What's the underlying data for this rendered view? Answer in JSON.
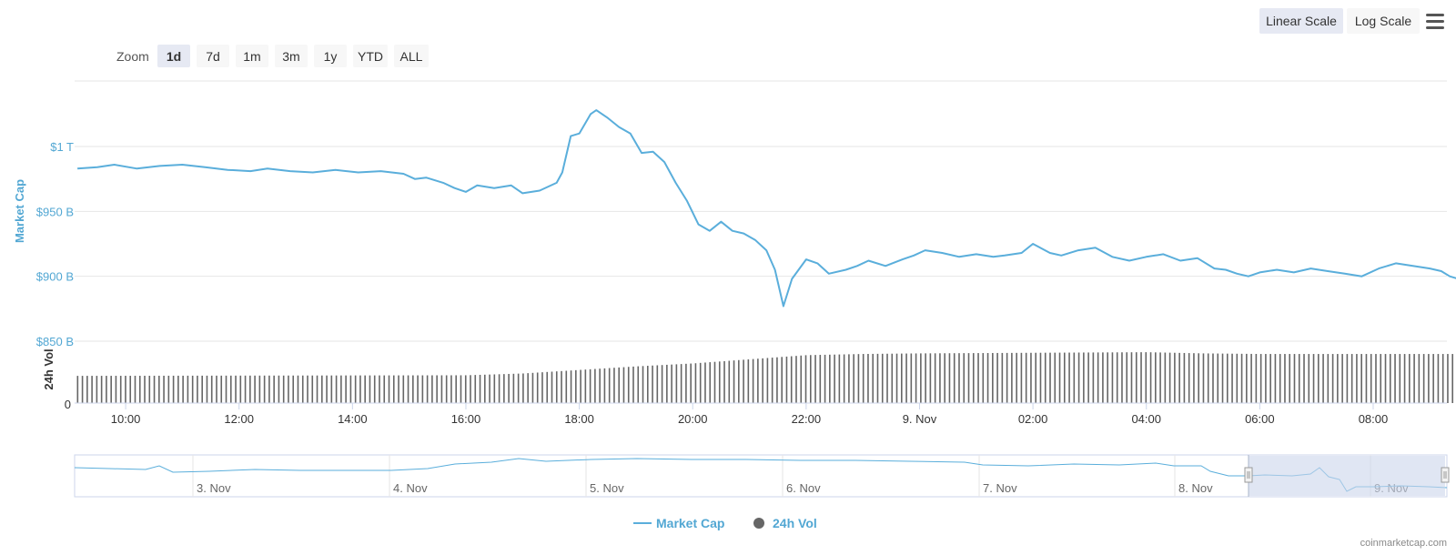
{
  "zoom": {
    "label": "Zoom",
    "buttons": [
      "1d",
      "7d",
      "1m",
      "3m",
      "1y",
      "YTD",
      "ALL"
    ],
    "active": "1d"
  },
  "scale": {
    "buttons": [
      "Linear Scale",
      "Log Scale"
    ],
    "active": "Linear Scale",
    "menu_icon": "hamburger-menu-icon"
  },
  "credit": "coinmarketcap.com",
  "colors": {
    "line": "#5aaedb",
    "axis_label": "#52a7d3",
    "volume": "#666666",
    "navigator_mask": "#ccd6eb",
    "active_button": "#e6e9f3"
  },
  "chart_data": {
    "type": "line",
    "ylabel": "Market Cap",
    "y2label": "24h Vol",
    "y_ticks": [
      {
        "value": 850,
        "label": "$850 B"
      },
      {
        "value": 900,
        "label": "$900 B"
      },
      {
        "value": 950,
        "label": "$950 B"
      },
      {
        "value": 1000,
        "label": "$1 T"
      }
    ],
    "ylim": [
      850,
      1050
    ],
    "vol_tick_label": "0",
    "x_ticks": [
      {
        "t": 10,
        "label": "10:00"
      },
      {
        "t": 12,
        "label": "12:00"
      },
      {
        "t": 14,
        "label": "14:00"
      },
      {
        "t": 16,
        "label": "16:00"
      },
      {
        "t": 18,
        "label": "18:00"
      },
      {
        "t": 20,
        "label": "20:00"
      },
      {
        "t": 22,
        "label": "22:00"
      },
      {
        "t": 24,
        "label": "9. Nov"
      },
      {
        "t": 26,
        "label": "02:00"
      },
      {
        "t": 28,
        "label": "04:00"
      },
      {
        "t": 30,
        "label": "06:00"
      },
      {
        "t": 32,
        "label": "08:00"
      }
    ],
    "xlim": [
      9.1,
      33.3
    ],
    "series": [
      {
        "name": "Market Cap",
        "points": [
          [
            9.15,
            983
          ],
          [
            9.5,
            984
          ],
          [
            9.8,
            986
          ],
          [
            10.2,
            983
          ],
          [
            10.6,
            985
          ],
          [
            11.0,
            986
          ],
          [
            11.4,
            984
          ],
          [
            11.8,
            982
          ],
          [
            12.2,
            981
          ],
          [
            12.5,
            983
          ],
          [
            12.9,
            981
          ],
          [
            13.3,
            980
          ],
          [
            13.7,
            982
          ],
          [
            14.1,
            980
          ],
          [
            14.5,
            981
          ],
          [
            14.9,
            979
          ],
          [
            15.1,
            975
          ],
          [
            15.3,
            976
          ],
          [
            15.6,
            972
          ],
          [
            15.8,
            968
          ],
          [
            16.0,
            965
          ],
          [
            16.2,
            970
          ],
          [
            16.5,
            968
          ],
          [
            16.8,
            970
          ],
          [
            17.0,
            964
          ],
          [
            17.3,
            966
          ],
          [
            17.6,
            972
          ],
          [
            17.7,
            980
          ],
          [
            17.85,
            1008
          ],
          [
            18.0,
            1010
          ],
          [
            18.2,
            1025
          ],
          [
            18.3,
            1028
          ],
          [
            18.5,
            1022
          ],
          [
            18.7,
            1015
          ],
          [
            18.9,
            1010
          ],
          [
            19.1,
            995
          ],
          [
            19.3,
            996
          ],
          [
            19.5,
            988
          ],
          [
            19.7,
            972
          ],
          [
            19.9,
            958
          ],
          [
            20.1,
            940
          ],
          [
            20.3,
            935
          ],
          [
            20.5,
            942
          ],
          [
            20.7,
            935
          ],
          [
            20.9,
            933
          ],
          [
            21.1,
            928
          ],
          [
            21.3,
            920
          ],
          [
            21.45,
            905
          ],
          [
            21.6,
            877
          ],
          [
            21.75,
            898
          ],
          [
            22.0,
            913
          ],
          [
            22.2,
            910
          ],
          [
            22.4,
            902
          ],
          [
            22.7,
            905
          ],
          [
            22.9,
            908
          ],
          [
            23.1,
            912
          ],
          [
            23.4,
            908
          ],
          [
            23.7,
            913
          ],
          [
            23.9,
            916
          ],
          [
            24.1,
            920
          ],
          [
            24.4,
            918
          ],
          [
            24.7,
            915
          ],
          [
            25.0,
            917
          ],
          [
            25.3,
            915
          ],
          [
            25.5,
            916
          ],
          [
            25.8,
            918
          ],
          [
            26.0,
            925
          ],
          [
            26.3,
            918
          ],
          [
            26.5,
            916
          ],
          [
            26.8,
            920
          ],
          [
            27.1,
            922
          ],
          [
            27.4,
            915
          ],
          [
            27.7,
            912
          ],
          [
            28.0,
            915
          ],
          [
            28.3,
            917
          ],
          [
            28.6,
            912
          ],
          [
            28.9,
            914
          ],
          [
            29.2,
            906
          ],
          [
            29.4,
            905
          ],
          [
            29.6,
            902
          ],
          [
            29.8,
            900
          ],
          [
            30.0,
            903
          ],
          [
            30.3,
            905
          ],
          [
            30.6,
            903
          ],
          [
            30.9,
            906
          ],
          [
            31.2,
            904
          ],
          [
            31.5,
            902
          ],
          [
            31.8,
            900
          ],
          [
            32.1,
            906
          ],
          [
            32.4,
            910
          ],
          [
            32.7,
            908
          ],
          [
            33.0,
            906
          ],
          [
            33.2,
            904
          ],
          [
            33.35,
            900
          ],
          [
            33.5,
            898
          ],
          [
            33.65,
            897
          ]
        ]
      },
      {
        "name": "24h Vol",
        "levels": [
          [
            9.15,
            0.46
          ],
          [
            16.0,
            0.47
          ],
          [
            17.0,
            0.5
          ],
          [
            18.0,
            0.56
          ],
          [
            19.0,
            0.62
          ],
          [
            20.0,
            0.67
          ],
          [
            21.0,
            0.74
          ],
          [
            22.0,
            0.81
          ],
          [
            23.0,
            0.83
          ],
          [
            24.0,
            0.84
          ],
          [
            26.0,
            0.85
          ],
          [
            28.0,
            0.86
          ],
          [
            29.0,
            0.84
          ],
          [
            30.0,
            0.83
          ],
          [
            33.65,
            0.83
          ]
        ]
      }
    ],
    "navigator": {
      "ticks": [
        "3. Nov",
        "4. Nov",
        "5. Nov",
        "6. Nov",
        "7. Nov",
        "8. Nov",
        "9. Nov"
      ],
      "selected_range_label": "1d"
    },
    "legend": {
      "position": "bottom-center",
      "items": [
        {
          "name": "Market Cap",
          "symbol": "line"
        },
        {
          "name": "24h Vol",
          "symbol": "circle"
        }
      ]
    }
  }
}
